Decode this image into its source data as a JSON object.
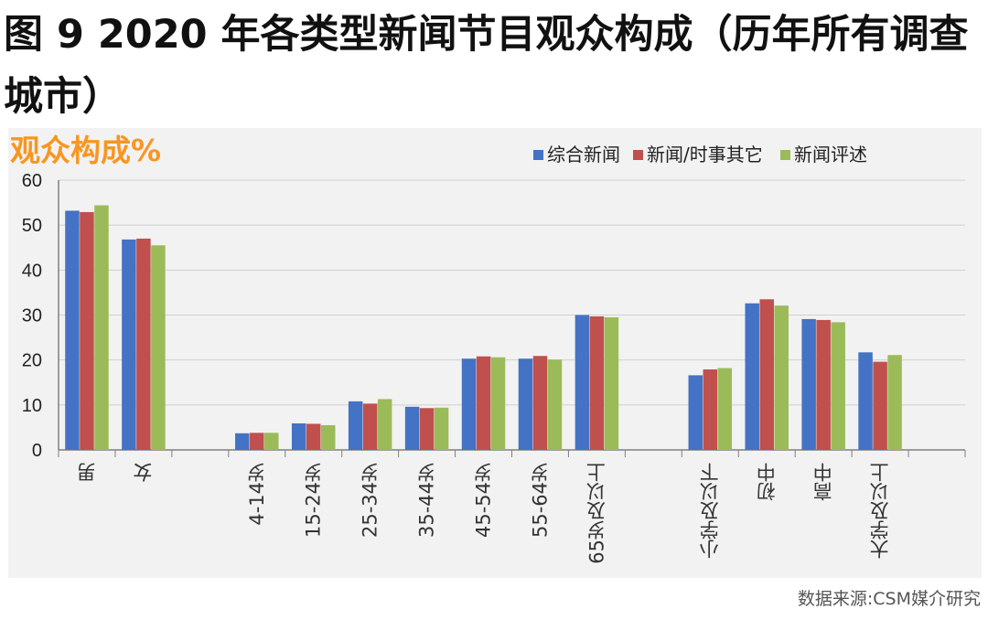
{
  "figure_title": "图 9 2020 年各类型新闻节目观众构成（历年所有调查城市）",
  "source_note": "数据来源:CSM媒介研究",
  "colors": {
    "series": [
      "#4472c4",
      "#c0504d",
      "#9bbb59"
    ],
    "ylabel": "#f79621",
    "panel": "#f2f2f2",
    "grid": "#d0d0d0"
  },
  "chart_data": {
    "type": "bar",
    "title": "",
    "ylabel": "观众构成%",
    "ylim": [
      0,
      60
    ],
    "yticks": [
      0,
      10,
      20,
      30,
      40,
      50,
      60
    ],
    "grid": true,
    "legend_position": "top-right",
    "categories": [
      "男",
      "女",
      "",
      "4-14岁",
      "15-24岁",
      "25-34岁",
      "35-44岁",
      "45-54岁",
      "55-64岁",
      "65岁及以上",
      "",
      "小学及以下",
      "初中",
      "高中",
      "大学及以上",
      ""
    ],
    "series": [
      {
        "name": "综合新闻",
        "values": [
          53.2,
          46.8,
          null,
          3.7,
          5.9,
          10.8,
          9.6,
          20.3,
          20.3,
          30.0,
          null,
          16.6,
          32.6,
          29.1,
          21.7,
          null
        ]
      },
      {
        "name": "新闻/时事其它",
        "values": [
          52.9,
          47.0,
          null,
          3.8,
          5.8,
          10.3,
          9.3,
          20.8,
          20.9,
          29.7,
          null,
          17.9,
          33.5,
          28.9,
          19.6,
          null
        ]
      },
      {
        "name": "新闻评述",
        "values": [
          54.4,
          45.5,
          null,
          3.8,
          5.5,
          11.3,
          9.4,
          20.6,
          20.1,
          29.5,
          null,
          18.2,
          32.1,
          28.4,
          21.1,
          null
        ]
      }
    ]
  }
}
